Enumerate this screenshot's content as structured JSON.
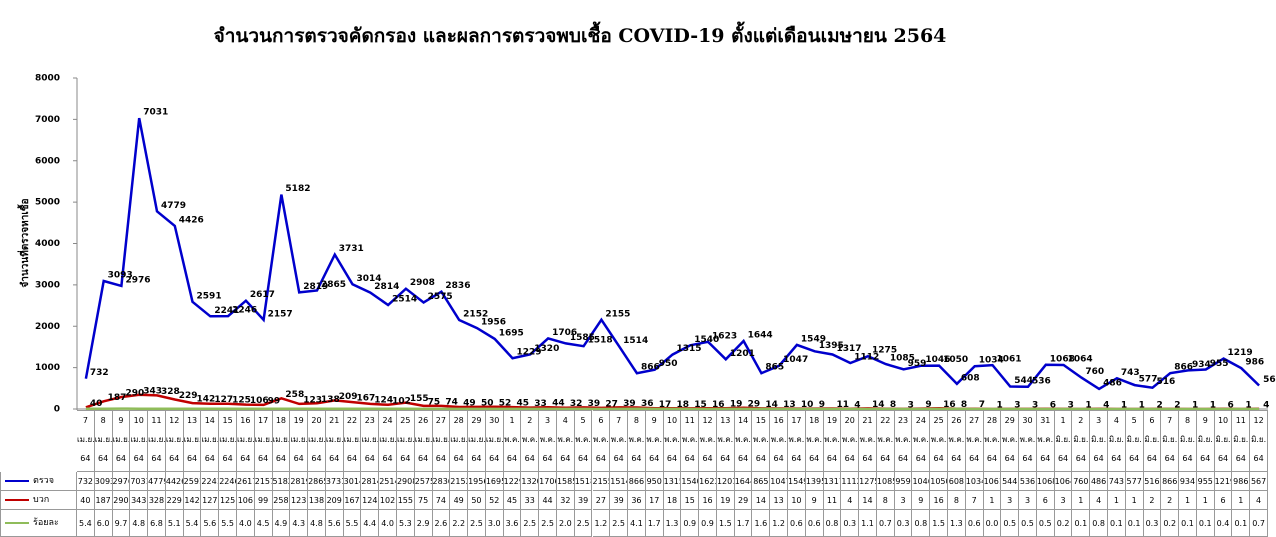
{
  "chart_data": {
    "type": "line",
    "title": "จำนวนการตรวจคัดกรอง และผลการตรวจพบเชื้อ COVID-19 ตั้งแต่เดือนเมษายน 2564",
    "y_label": "จำนวนที่ตรวจหาเชื้อ",
    "categories": [
      "7 เม.ย. 64",
      "8 เม.ย. 64",
      "9 เม.ย. 64",
      "10 เม.ย. 64",
      "11 เม.ย. 64",
      "12 เม.ย. 64",
      "13 เม.ย. 64",
      "14 เม.ย. 64",
      "15 เม.ย. 64",
      "16 เม.ย. 64",
      "17 เม.ย. 64",
      "18 เม.ย. 64",
      "19 เม.ย. 64",
      "20 เม.ย. 64",
      "21 เม.ย. 64",
      "22 เม.ย. 64",
      "23 เม.ย. 64",
      "24 เม.ย. 64",
      "25 เม.ย. 64",
      "26 เม.ย. 64",
      "27 เม.ย. 64",
      "28 เม.ย. 64",
      "29 เม.ย. 64",
      "30 เม.ย. 64",
      "1 พ.ค. 64",
      "2 พ.ค. 64",
      "3 พ.ค. 64",
      "4 พ.ค. 64",
      "5 พ.ค. 64",
      "6 พ.ค. 64",
      "7 พ.ค. 64",
      "8 พ.ค. 64",
      "9 พ.ค. 64",
      "10 พ.ค. 64",
      "11 พ.ค. 64",
      "12 พ.ค. 64",
      "13 พ.ค. 64",
      "14 พ.ค. 64",
      "15 พ.ค. 64",
      "16 พ.ค. 64",
      "17 พ.ค. 64",
      "18 พ.ค. 64",
      "19 พ.ค. 64",
      "20 พ.ค. 64",
      "21 พ.ค. 64",
      "22 พ.ค. 64",
      "23 พ.ค. 64",
      "24 พ.ค. 64",
      "25 พ.ค. 64",
      "26 พ.ค. 64",
      "27 พ.ค. 64",
      "28 พ.ค. 64",
      "29 พ.ค. 64",
      "30 พ.ค. 64",
      "31 พ.ค. 64",
      "1 มิ.ย. 64",
      "2 มิ.ย. 64",
      "3 มิ.ย. 64",
      "4 มิ.ย. 64",
      "5 มิ.ย. 64",
      "6 มิ.ย. 64",
      "7 มิ.ย. 64",
      "8 มิ.ย. 64",
      "9 มิ.ย. 64",
      "10 มิ.ย. 64",
      "11 มิ.ย. 64",
      "12 มิ.ย. 64"
    ],
    "series": [
      {
        "name": "ตรวจ",
        "color": "#0000cc",
        "values": [
          732,
          3093,
          2976,
          7031,
          4779,
          4426,
          2591,
          2241,
          2246,
          2617,
          2157,
          5182,
          2819,
          2865,
          3731,
          3014,
          2814,
          2514,
          2908,
          2575,
          2836,
          2152,
          1956,
          1695,
          1229,
          1320,
          1706,
          1585,
          1518,
          2155,
          1514,
          866,
          950,
          1315,
          1540,
          1623,
          1201,
          1644,
          865,
          1047,
          1549,
          1395,
          1317,
          1112,
          1275,
          1085,
          959,
          1046,
          1050,
          608,
          1034,
          1061,
          544,
          536,
          1068,
          1064,
          760,
          486,
          743,
          577,
          516,
          866,
          934,
          955,
          1219,
          986,
          567
        ]
      },
      {
        "name": "บวก",
        "color": "#c00000",
        "values": [
          40,
          187,
          290,
          343,
          328,
          229,
          142,
          127,
          125,
          106,
          99,
          258,
          123,
          138,
          209,
          167,
          124,
          102,
          155,
          75,
          74,
          49,
          50,
          52,
          45,
          33,
          44,
          32,
          39,
          27,
          39,
          36,
          17,
          18,
          15,
          16,
          19,
          29,
          14,
          13,
          10,
          9,
          11,
          4,
          14,
          8,
          3,
          9,
          16,
          8,
          7,
          1,
          3,
          3,
          6,
          3,
          1,
          4,
          1,
          1,
          2,
          2,
          1,
          1,
          6,
          1,
          4
        ]
      },
      {
        "name": "ร้อยละ",
        "color": "#8fbc5a",
        "values": [
          5.4,
          6,
          9.7,
          4.8,
          6.8,
          5.1,
          5.4,
          5.6,
          5.5,
          4,
          4.5,
          4.9,
          4.3,
          4.8,
          5.6,
          5.5,
          4.4,
          4,
          5.3,
          2.9,
          2.6,
          2.2,
          2.5,
          3,
          3.6,
          2.5,
          2.5,
          2,
          2.5,
          1.2,
          2.5,
          4.1,
          1.7,
          1.3,
          0.9,
          0.9,
          1.5,
          1.7,
          1.6,
          1.2,
          0.6,
          0.6,
          0.8,
          0.3,
          1.1,
          0.7,
          0.3,
          0.8,
          1.5,
          1.3,
          0.6,
          0,
          0.5,
          0.5,
          0.5,
          0.2,
          0.1,
          0.8,
          0.1,
          0.1,
          0.3,
          0.2,
          0.1,
          0.1,
          0.4,
          0.1,
          0.7
        ],
        "value_labels": [
          "5.4",
          "6.0",
          "9.7",
          "4.8",
          "6.8",
          "5.1",
          "5.4",
          "5.6",
          "5.5",
          "4.0",
          "4.5",
          "4.9",
          "4.3",
          "4.8",
          "5.6",
          "5.5",
          "4.4",
          "4.0",
          "5.3",
          "2.9",
          "2.6",
          "2.2",
          "2.5",
          "3.0",
          "3.6",
          "2.5",
          "2.5",
          "2.0",
          "2.5",
          "1.2",
          "2.5",
          "4.1",
          "1.7",
          "1.3",
          "0.9",
          "0.9",
          "1.5",
          "1.7",
          "1.6",
          "1.2",
          "0.6",
          "0.6",
          "0.8",
          "0.3",
          "1.1",
          "0.7",
          "0.3",
          "0.8",
          "1.5",
          "1.3",
          "0.6",
          "0.0",
          "0.5",
          "0.5",
          "0.5",
          "0.2",
          "0.1",
          "0.8",
          "0.1",
          "0.1",
          "0.3",
          "0.2",
          "0.1",
          "0.1",
          "0.4",
          "0.1",
          "0.7"
        ]
      }
    ],
    "ylim": [
      0,
      8000
    ],
    "yticks": [
      0,
      1000,
      2000,
      3000,
      4000,
      5000,
      6000,
      7000,
      8000
    ]
  }
}
